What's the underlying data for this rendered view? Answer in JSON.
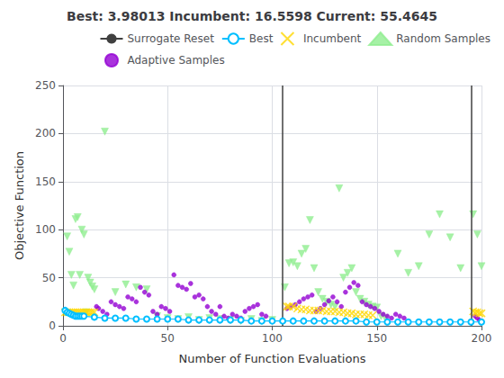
{
  "chart_data": {
    "type": "scatter",
    "title": "Best: 3.98013 Incumbent: 16.5598 Current: 55.4645",
    "xlabel": "Number of Function Evaluations",
    "ylabel": "Objective Function",
    "xlim": [
      0,
      200
    ],
    "ylim": [
      0,
      250
    ],
    "xticks": [
      0,
      50,
      100,
      150,
      200
    ],
    "yticks": [
      0,
      50,
      100,
      150,
      200,
      250
    ],
    "grid": true,
    "legend": "upper right",
    "series": [
      {
        "name": "Surrogate Reset",
        "type": "vline",
        "color": "#404040",
        "line_style": "solid",
        "x": [
          105,
          195
        ]
      },
      {
        "name": "Best",
        "type": "line",
        "color": "#00bfff",
        "marker": "o",
        "line_style": "solid",
        "x": [
          1,
          2,
          3,
          4,
          5,
          6,
          7,
          8,
          9,
          10,
          15,
          20,
          25,
          30,
          35,
          40,
          45,
          50,
          55,
          60,
          65,
          70,
          75,
          80,
          85,
          90,
          95,
          100,
          105,
          110,
          115,
          120,
          125,
          130,
          135,
          140,
          145,
          150,
          155,
          160,
          165,
          170,
          175,
          180,
          185,
          190,
          195,
          200
        ],
        "values": [
          16,
          14,
          13,
          12,
          11,
          10,
          10,
          10,
          10,
          10,
          9,
          8,
          8,
          8,
          7,
          7,
          7,
          7,
          7,
          6,
          6,
          6,
          6,
          6,
          6,
          5,
          5,
          5,
          5,
          5,
          5,
          5,
          5,
          5,
          5,
          5,
          4,
          4,
          4,
          4,
          4,
          4,
          4,
          4,
          4,
          4,
          4,
          4
        ]
      },
      {
        "name": "Incumbent",
        "type": "scatter",
        "color": "#ffd700",
        "marker": "x",
        "x": [
          1,
          2,
          3,
          4,
          5,
          6,
          7,
          8,
          9,
          10,
          11,
          12,
          13,
          14,
          15,
          107,
          108,
          110,
          112,
          114,
          116,
          118,
          120,
          122,
          124,
          126,
          128,
          130,
          132,
          134,
          136,
          138,
          140,
          142,
          144,
          146,
          148,
          196,
          197,
          198,
          199,
          200
        ],
        "values": [
          14,
          14,
          14,
          14,
          14,
          14,
          14,
          14,
          14,
          14,
          14,
          14,
          14,
          14,
          14,
          20,
          20,
          20,
          18,
          17,
          17,
          16,
          16,
          16,
          16,
          15,
          15,
          15,
          14,
          14,
          13,
          13,
          12,
          12,
          12,
          11,
          11,
          15,
          14,
          14,
          13,
          13
        ]
      },
      {
        "name": "Random Samples",
        "type": "scatter",
        "color": "#90ee90",
        "marker": "triangle-down",
        "x": [
          1,
          2,
          3,
          4,
          5,
          6,
          7,
          8,
          9,
          10,
          11,
          12,
          13,
          14,
          15,
          20,
          25,
          30,
          35,
          40,
          45,
          50,
          55,
          60,
          65,
          70,
          75,
          80,
          85,
          90,
          95,
          100,
          106,
          108,
          110,
          112,
          114,
          116,
          118,
          120,
          122,
          124,
          126,
          128,
          130,
          132,
          134,
          136,
          138,
          140,
          142,
          144,
          146,
          148,
          150,
          152,
          154,
          160,
          165,
          170,
          175,
          180,
          185,
          190,
          196,
          198,
          200
        ],
        "values": [
          14,
          93,
          77,
          53,
          42,
          111,
          113,
          53,
          100,
          95,
          14,
          50,
          45,
          41,
          38,
          202,
          35,
          43,
          40,
          38,
          10,
          8,
          7,
          9,
          6,
          8,
          7,
          6,
          5,
          7,
          5,
          6,
          40,
          65,
          66,
          62,
          75,
          80,
          110,
          60,
          35,
          28,
          25,
          22,
          20,
          143,
          50,
          55,
          60,
          35,
          28,
          25,
          22,
          20,
          19,
          10,
          8,
          75,
          55,
          62,
          95,
          116,
          92,
          60,
          116,
          95,
          62
        ]
      },
      {
        "name": "Adaptive Samples",
        "type": "scatter",
        "color": "#9400d3",
        "marker": "dot",
        "x": [
          16,
          17,
          19,
          21,
          23,
          25,
          27,
          29,
          31,
          33,
          35,
          37,
          39,
          41,
          43,
          45,
          47,
          49,
          51,
          53,
          55,
          57,
          59,
          61,
          63,
          65,
          67,
          69,
          71,
          73,
          75,
          77,
          79,
          81,
          83,
          85,
          87,
          89,
          91,
          93,
          95,
          97,
          107,
          109,
          111,
          113,
          115,
          117,
          119,
          121,
          123,
          125,
          127,
          129,
          131,
          133,
          135,
          137,
          139,
          141,
          143,
          145,
          147,
          149,
          151,
          153,
          155,
          157,
          159,
          161,
          163,
          197,
          198,
          199
        ],
        "values": [
          20,
          18,
          15,
          12,
          25,
          22,
          20,
          18,
          30,
          28,
          25,
          40,
          35,
          32,
          15,
          12,
          20,
          18,
          15,
          53,
          42,
          40,
          38,
          44,
          30,
          32,
          28,
          20,
          15,
          12,
          20,
          10,
          8,
          12,
          10,
          8,
          15,
          18,
          20,
          22,
          12,
          10,
          18,
          20,
          22,
          25,
          28,
          30,
          32,
          15,
          18,
          22,
          26,
          30,
          25,
          20,
          35,
          40,
          45,
          42,
          25,
          22,
          20,
          18,
          15,
          12,
          10,
          8,
          12,
          10,
          8,
          10,
          8,
          6
        ]
      }
    ]
  }
}
